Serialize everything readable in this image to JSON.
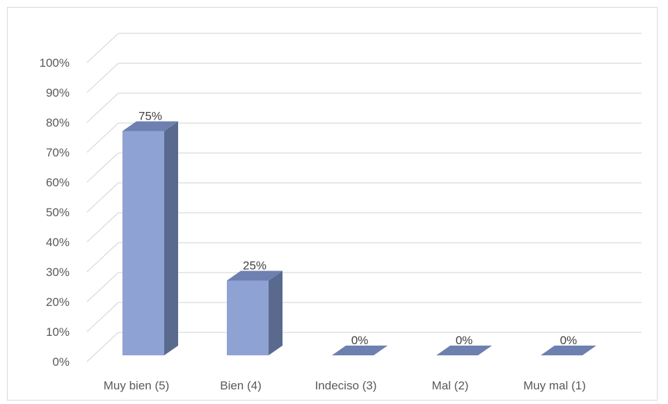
{
  "chart_data": {
    "type": "bar",
    "style": "3d-column",
    "categories": [
      "Muy bien (5)",
      "Bien (4)",
      "Indeciso (3)",
      "Mal (2)",
      "Muy mal (1)"
    ],
    "values": [
      75,
      25,
      0,
      0,
      0
    ],
    "data_labels": [
      "75%",
      "25%",
      "0%",
      "0%",
      "0%"
    ],
    "yticks": [
      "0%",
      "10%",
      "20%",
      "30%",
      "40%",
      "50%",
      "60%",
      "70%",
      "80%",
      "90%",
      "100%"
    ],
    "ylim": [
      0,
      100
    ],
    "grid": true,
    "legend": "none",
    "colors": {
      "front": "#8fa2d4",
      "side": "#5a6a8e",
      "top": "#6e80b0",
      "grid": "#d9d9d9"
    }
  }
}
